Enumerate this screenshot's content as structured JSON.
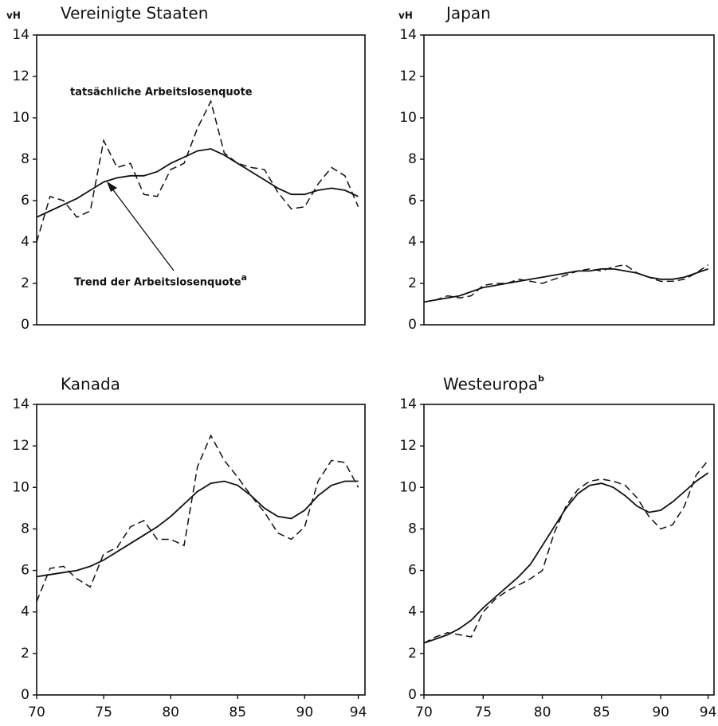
{
  "chart_data": [
    {
      "type": "line",
      "title": "Vereinigte Staaten",
      "unit_label": "vH",
      "x": [
        70,
        71,
        72,
        73,
        74,
        75,
        76,
        77,
        78,
        79,
        80,
        81,
        82,
        83,
        84,
        85,
        86,
        87,
        88,
        89,
        90,
        91,
        92,
        93,
        94
      ],
      "xlim": [
        70,
        94.5
      ],
      "ylim": [
        0,
        14
      ],
      "yticks": [
        0,
        2,
        4,
        6,
        8,
        10,
        12,
        14
      ],
      "series": [
        {
          "name": "tatsächliche Arbeitslosenquote",
          "color": "#111",
          "dashed": true,
          "values": [
            4.0,
            6.2,
            6.0,
            5.2,
            5.5,
            8.9,
            7.6,
            7.8,
            6.3,
            6.2,
            7.5,
            7.8,
            9.5,
            10.8,
            8.3,
            7.8,
            7.6,
            7.5,
            6.4,
            5.6,
            5.7,
            6.8,
            7.6,
            7.2,
            5.7
          ]
        },
        {
          "name": "Trend der Arbeitslosenquote",
          "name_note": "a",
          "color": "#111",
          "dashed": false,
          "values": [
            5.2,
            5.5,
            5.8,
            6.1,
            6.5,
            6.9,
            7.1,
            7.2,
            7.2,
            7.4,
            7.8,
            8.1,
            8.4,
            8.5,
            8.2,
            7.8,
            7.4,
            7.0,
            6.6,
            6.3,
            6.3,
            6.5,
            6.6,
            6.5,
            6.2
          ]
        }
      ]
    },
    {
      "type": "line",
      "title": "Japan",
      "unit_label": "vH",
      "x": [
        70,
        71,
        72,
        73,
        74,
        75,
        76,
        77,
        78,
        79,
        80,
        81,
        82,
        83,
        84,
        85,
        86,
        87,
        88,
        89,
        90,
        91,
        92,
        93,
        94
      ],
      "xlim": [
        70,
        94.5
      ],
      "ylim": [
        0,
        14
      ],
      "yticks": [
        0,
        2,
        4,
        6,
        8,
        10,
        12,
        14
      ],
      "series": [
        {
          "color": "#111",
          "dashed": true,
          "values": [
            1.1,
            1.2,
            1.4,
            1.3,
            1.4,
            1.9,
            2.0,
            2.0,
            2.2,
            2.1,
            2.0,
            2.2,
            2.4,
            2.6,
            2.7,
            2.6,
            2.8,
            2.9,
            2.5,
            2.3,
            2.1,
            2.1,
            2.2,
            2.5,
            2.9
          ]
        },
        {
          "color": "#111",
          "dashed": false,
          "values": [
            1.1,
            1.2,
            1.3,
            1.4,
            1.6,
            1.8,
            1.9,
            2.0,
            2.1,
            2.2,
            2.3,
            2.4,
            2.5,
            2.6,
            2.6,
            2.7,
            2.7,
            2.6,
            2.5,
            2.3,
            2.2,
            2.2,
            2.3,
            2.5,
            2.7
          ]
        }
      ]
    },
    {
      "type": "line",
      "title": "Kanada",
      "x": [
        70,
        71,
        72,
        73,
        74,
        75,
        76,
        77,
        78,
        79,
        80,
        81,
        82,
        83,
        84,
        85,
        86,
        87,
        88,
        89,
        90,
        91,
        92,
        93,
        94
      ],
      "xlim": [
        70,
        94.5
      ],
      "ylim": [
        0,
        14
      ],
      "yticks": [
        0,
        2,
        4,
        6,
        8,
        10,
        12,
        14
      ],
      "xticks": [
        70,
        75,
        80,
        85,
        90,
        94
      ],
      "series": [
        {
          "color": "#111",
          "dashed": true,
          "values": [
            4.5,
            6.1,
            6.2,
            5.6,
            5.2,
            6.8,
            7.1,
            8.1,
            8.4,
            7.5,
            7.5,
            7.2,
            11.0,
            12.5,
            11.3,
            10.5,
            9.6,
            8.8,
            7.8,
            7.5,
            8.1,
            10.3,
            11.3,
            11.2,
            10.0
          ]
        },
        {
          "color": "#111",
          "dashed": false,
          "values": [
            5.7,
            5.8,
            5.9,
            6.0,
            6.2,
            6.5,
            6.9,
            7.3,
            7.7,
            8.1,
            8.6,
            9.2,
            9.8,
            10.2,
            10.3,
            10.1,
            9.6,
            9.0,
            8.6,
            8.5,
            8.9,
            9.6,
            10.1,
            10.3,
            10.3
          ]
        }
      ]
    },
    {
      "type": "line",
      "title": "Westeuropa",
      "title_note": "b",
      "x": [
        70,
        71,
        72,
        73,
        74,
        75,
        76,
        77,
        78,
        79,
        80,
        81,
        82,
        83,
        84,
        85,
        86,
        87,
        88,
        89,
        90,
        91,
        92,
        93,
        94
      ],
      "xlim": [
        70,
        94.5
      ],
      "ylim": [
        0,
        14
      ],
      "yticks": [
        0,
        2,
        4,
        6,
        8,
        10,
        12,
        14
      ],
      "xticks": [
        70,
        75,
        80,
        85,
        90,
        94
      ],
      "series": [
        {
          "color": "#111",
          "dashed": true,
          "values": [
            2.5,
            2.8,
            3.0,
            2.9,
            2.8,
            4.0,
            4.6,
            5.0,
            5.3,
            5.6,
            6.0,
            7.8,
            9.1,
            9.9,
            10.3,
            10.4,
            10.3,
            10.1,
            9.5,
            8.6,
            8.0,
            8.2,
            9.1,
            10.6,
            11.3
          ]
        },
        {
          "color": "#111",
          "dashed": false,
          "values": [
            2.5,
            2.7,
            2.9,
            3.2,
            3.6,
            4.2,
            4.7,
            5.2,
            5.7,
            6.3,
            7.2,
            8.1,
            9.0,
            9.7,
            10.1,
            10.2,
            10.0,
            9.6,
            9.1,
            8.8,
            8.9,
            9.3,
            9.8,
            10.3,
            10.7
          ]
        }
      ]
    }
  ]
}
